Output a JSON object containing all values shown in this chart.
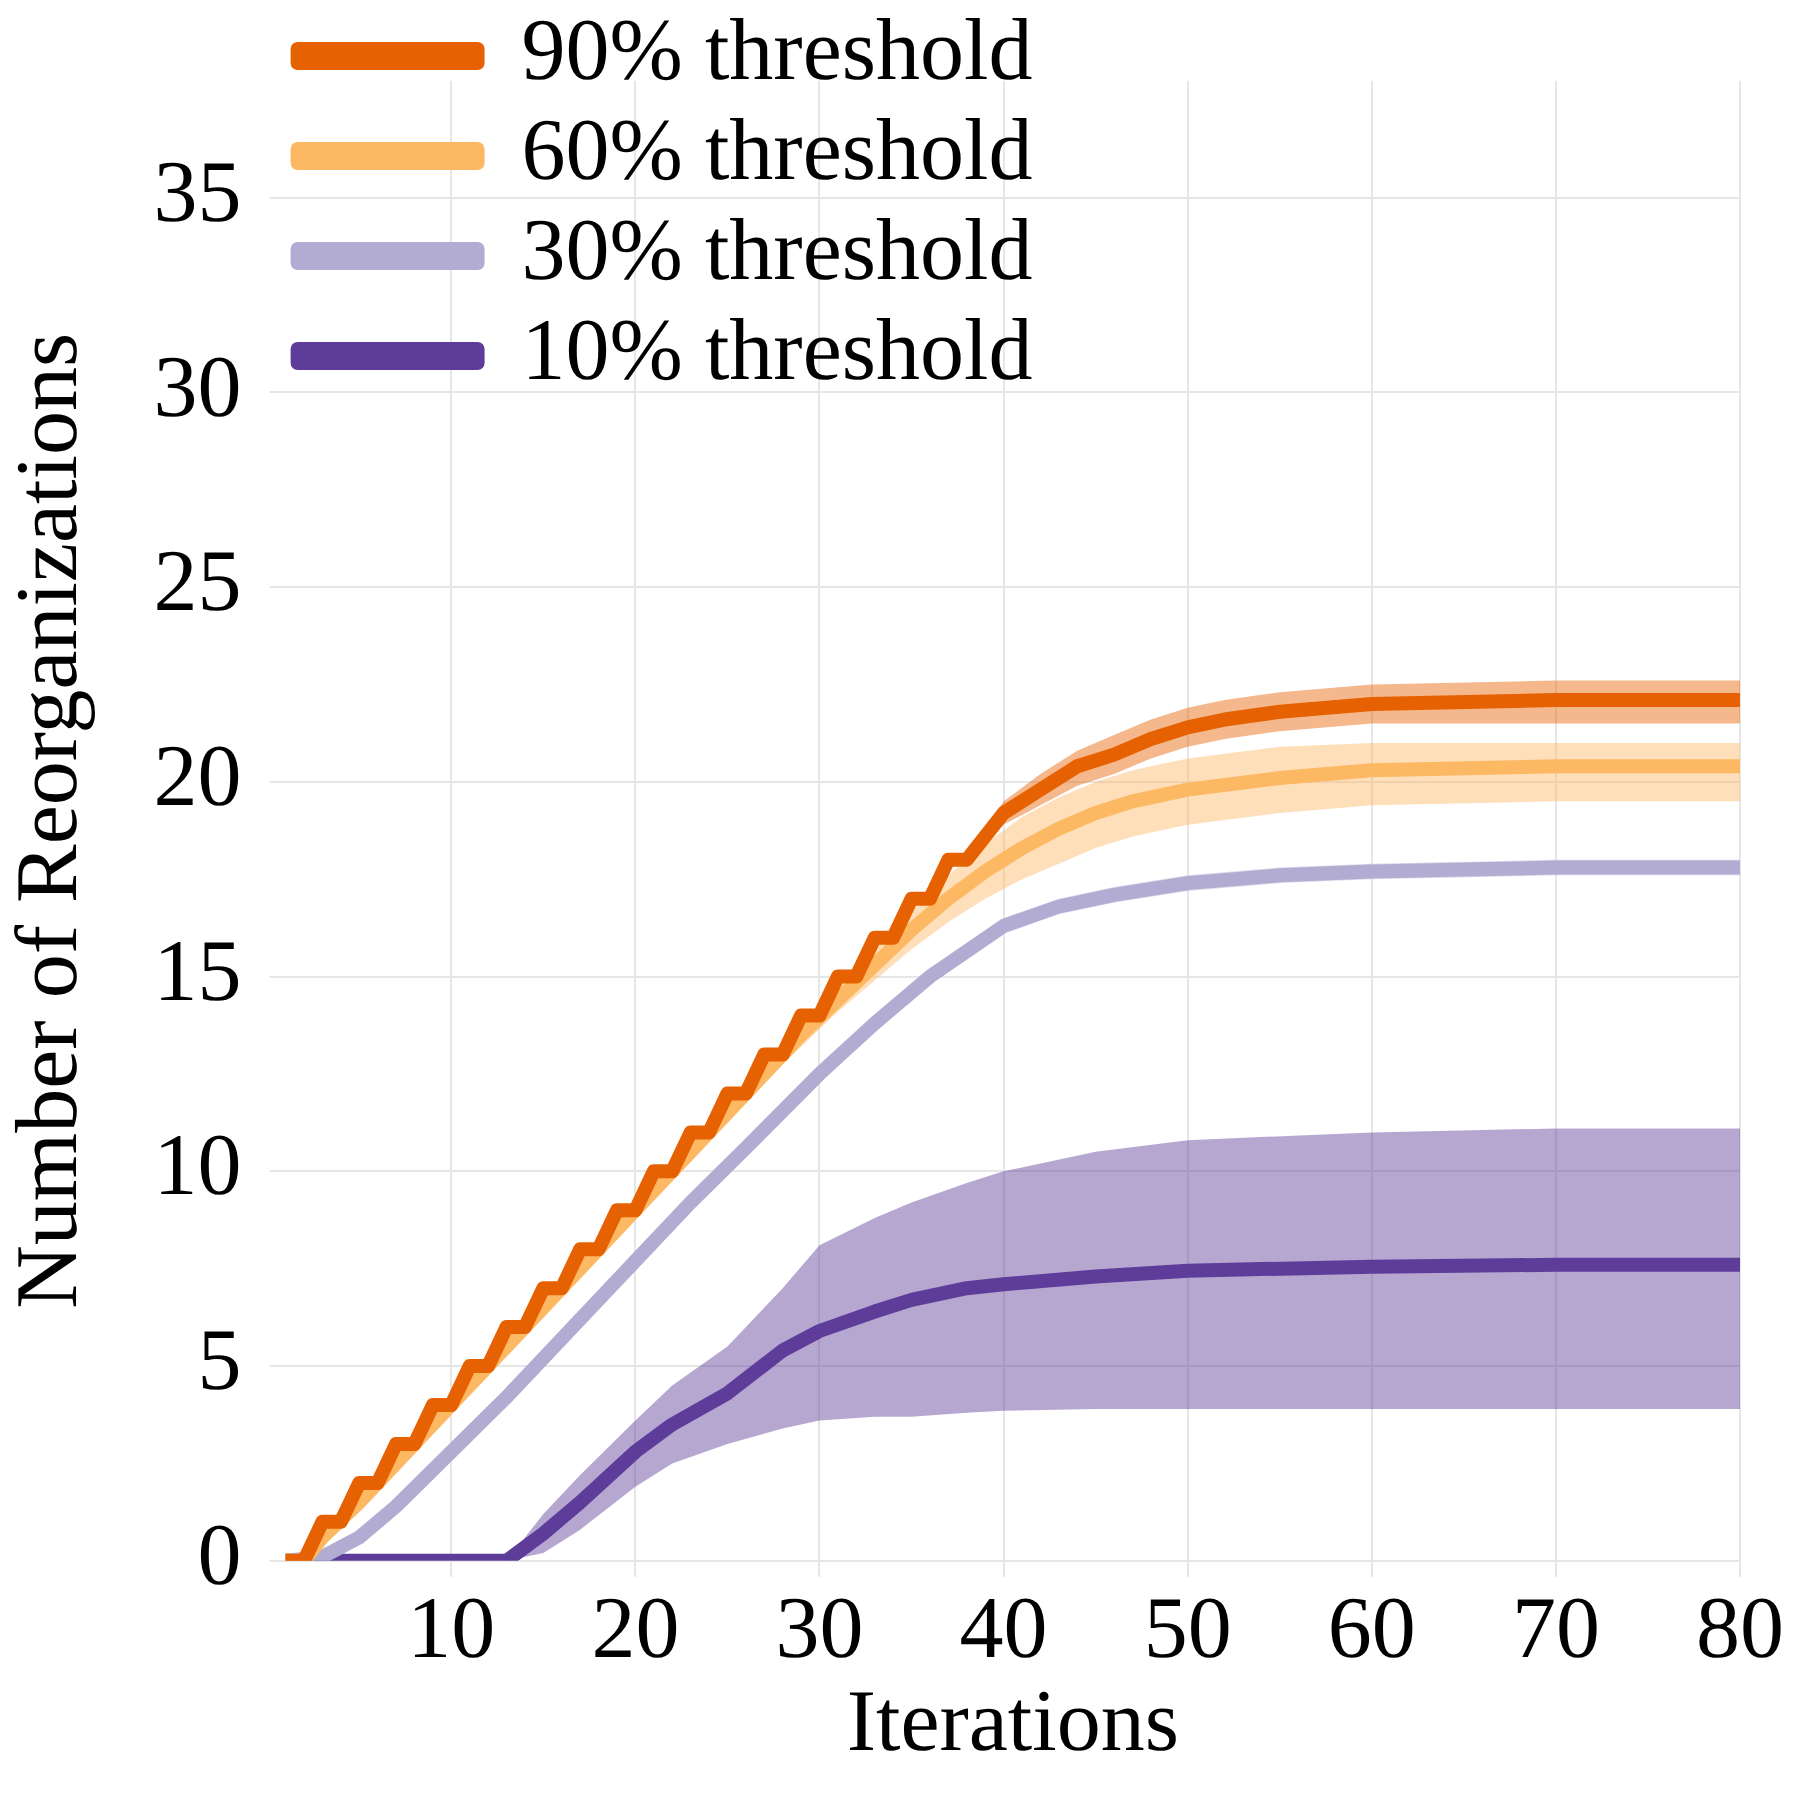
{
  "chart_data": {
    "type": "line",
    "xlabel": "Iterations",
    "ylabel": "Number of Reorganizations",
    "xlim": [
      1,
      80
    ],
    "xticks": [
      10,
      20,
      30,
      40,
      50,
      60,
      70,
      80
    ],
    "ylim": [
      0,
      38
    ],
    "yticks": [
      0,
      5,
      10,
      15,
      20,
      25,
      30,
      35
    ],
    "grid": true,
    "legend": "top left",
    "marker": "none",
    "line_style": "solid",
    "series": [
      {
        "name": "90% threshold",
        "color": "#e66101",
        "x": [
          1,
          2,
          3,
          4,
          5,
          6,
          7,
          8,
          9,
          10,
          11,
          12,
          13,
          14,
          15,
          16,
          17,
          18,
          19,
          20,
          21,
          22,
          23,
          24,
          25,
          26,
          27,
          28,
          29,
          30,
          31,
          32,
          33,
          34,
          35,
          36,
          37,
          38,
          40,
          42,
          44,
          46,
          48,
          50,
          52,
          55,
          60,
          70,
          80
        ],
        "values": [
          0,
          0,
          1,
          1,
          2,
          2,
          3,
          3,
          4,
          4,
          5,
          5,
          6,
          6,
          7,
          7,
          8,
          8,
          9,
          9,
          10,
          10,
          11,
          11,
          12,
          12,
          13,
          13,
          14,
          14,
          15,
          15,
          16,
          16,
          17,
          17,
          18,
          18,
          19.2,
          19.8,
          20.4,
          20.7,
          21.1,
          21.4,
          21.6,
          21.8,
          22,
          22.1,
          22.1
        ],
        "lower": [
          0,
          0,
          1,
          1,
          2,
          2,
          3,
          3,
          4,
          4,
          5,
          5,
          6,
          6,
          7,
          7,
          8,
          8,
          9,
          9,
          10,
          10,
          11,
          11,
          12,
          12,
          13,
          13,
          14,
          14,
          15,
          15,
          16,
          16,
          17,
          17,
          18,
          18,
          18.9,
          19.4,
          19.9,
          20.2,
          20.6,
          20.9,
          21.1,
          21.3,
          21.5,
          21.5,
          21.5
        ],
        "upper": [
          0,
          0,
          1,
          1,
          2,
          2,
          3,
          3,
          4,
          4,
          5,
          5,
          6,
          6,
          7,
          7,
          8,
          8,
          9,
          9,
          10,
          10,
          11,
          11,
          12,
          12,
          13,
          13,
          14,
          14,
          15,
          15,
          16,
          16,
          17,
          17,
          18,
          18,
          19.5,
          20.2,
          20.8,
          21.2,
          21.6,
          21.9,
          22.1,
          22.3,
          22.5,
          22.6,
          22.6
        ]
      },
      {
        "name": "60% threshold",
        "color": "#fdb863",
        "x": [
          1,
          2,
          3,
          5,
          7,
          9,
          11,
          13,
          15,
          17,
          19,
          21,
          23,
          25,
          27,
          29,
          31,
          33,
          35,
          37,
          39,
          41,
          43,
          45,
          47,
          50,
          55,
          60,
          70,
          80
        ],
        "values": [
          0,
          0,
          0.6,
          1.5,
          2.5,
          3.5,
          4.5,
          5.5,
          6.5,
          7.5,
          8.5,
          9.5,
          10.5,
          11.5,
          12.5,
          13.5,
          14.4,
          15.3,
          16.2,
          17,
          17.7,
          18.3,
          18.8,
          19.2,
          19.5,
          19.8,
          20.1,
          20.3,
          20.4,
          20.4
        ],
        "lower": [
          0,
          0,
          0.5,
          1.4,
          2.4,
          3.4,
          4.4,
          5.4,
          6.4,
          7.4,
          8.4,
          9.4,
          10.4,
          11.3,
          12.3,
          13.2,
          14.1,
          14.9,
          15.7,
          16.4,
          17,
          17.5,
          17.9,
          18.3,
          18.6,
          18.9,
          19.2,
          19.4,
          19.5,
          19.5
        ],
        "upper": [
          0,
          0,
          0.7,
          1.6,
          2.6,
          3.6,
          4.6,
          5.6,
          6.6,
          7.6,
          8.6,
          9.6,
          10.6,
          11.7,
          12.7,
          13.8,
          14.7,
          15.7,
          16.7,
          17.6,
          18.4,
          19.1,
          19.6,
          20,
          20.3,
          20.6,
          20.9,
          21,
          21,
          21
        ]
      },
      {
        "name": "30% threshold",
        "color": "#b2abd2",
        "x": [
          1,
          3,
          5,
          7,
          10,
          13,
          16,
          20,
          23,
          26,
          30,
          33,
          36,
          40,
          43,
          46,
          50,
          55,
          60,
          70,
          80
        ],
        "values": [
          0,
          0.1,
          0.6,
          1.4,
          2.8,
          4.2,
          5.7,
          7.7,
          9.2,
          10.6,
          12.5,
          13.8,
          15,
          16.3,
          16.8,
          17.1,
          17.4,
          17.6,
          17.7,
          17.8,
          17.8
        ],
        "lower": [
          0,
          0,
          0.4,
          1.2,
          2.6,
          4,
          5.5,
          7.5,
          9,
          10.4,
          12.3,
          13.6,
          14.8,
          16.1,
          16.6,
          16.9,
          17.2,
          17.4,
          17.5,
          17.6,
          17.6
        ],
        "upper": [
          0,
          0.3,
          0.8,
          1.6,
          3,
          4.4,
          5.9,
          7.9,
          9.4,
          10.8,
          12.7,
          14,
          15.2,
          16.5,
          17,
          17.3,
          17.6,
          17.8,
          17.9,
          18,
          18
        ]
      },
      {
        "name": "10% threshold",
        "color": "#5e3c99",
        "x": [
          1,
          13,
          15,
          17,
          20,
          22,
          25,
          28,
          30,
          33,
          35,
          38,
          40,
          45,
          50,
          60,
          70,
          80
        ],
        "values": [
          0,
          0,
          0.7,
          1.5,
          2.8,
          3.5,
          4.3,
          5.4,
          5.9,
          6.4,
          6.7,
          7,
          7.1,
          7.3,
          7.45,
          7.55,
          7.6,
          7.6
        ],
        "lower": [
          0,
          0,
          0.2,
          0.8,
          1.9,
          2.5,
          3,
          3.4,
          3.6,
          3.7,
          3.7,
          3.8,
          3.85,
          3.9,
          3.9,
          3.9,
          3.9,
          3.9
        ],
        "upper": [
          0,
          0,
          1.2,
          2.2,
          3.6,
          4.5,
          5.5,
          7,
          8.1,
          8.8,
          9.2,
          9.7,
          10,
          10.5,
          10.8,
          11,
          11.1,
          11.1
        ]
      }
    ]
  }
}
